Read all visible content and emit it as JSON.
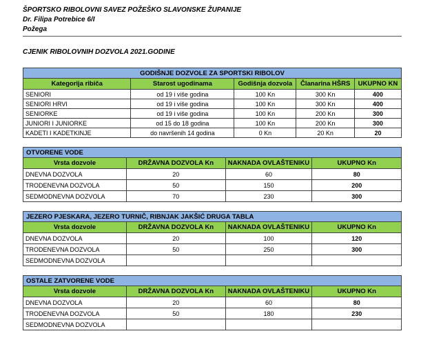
{
  "header": {
    "org_name": "ŠPORTSKO RIBOLOVNI SAVEZ POŽEŠKO SLAVONSKE ŽUPANIJE",
    "address": "Dr. Filipa Potrebice 6/I",
    "city": "Požega",
    "doc_title": "CJENIK RIBOLOVNIH DOZVOLA 2021.GODINE"
  },
  "colors": {
    "title_bar_blue": "#8DB4E2",
    "header_row_green": "#92D050",
    "table_border": "#404040"
  },
  "tables": [
    {
      "title": "GODIŠNJE DOZVOLE ZA SPORTSKI RIBOLOV",
      "columns": [
        "Kategorija ribiča",
        "Starost ugodinama",
        "Godišnja dozvola",
        "Članarina HŠRS",
        "UKUPNO KN"
      ],
      "rows": [
        [
          "SENIORI",
          "od 19 i više godina",
          "100 Kn",
          "300 Kn",
          "400"
        ],
        [
          "SENIORI HRVI",
          "od 19 i više godina",
          "100 Kn",
          "300 Kn",
          "400"
        ],
        [
          "SENIORKE",
          "od 19 i više godina",
          "100 Kn",
          "200 Kn",
          "300"
        ],
        [
          "JUNIORI I JUNIORKE",
          "od 15 do 18 godina",
          "100 Kn",
          "200 Kn",
          "300"
        ],
        [
          "KADETI I KADETKINJE",
          "do navršenih 14 godina",
          "0 Kn",
          "20 Kn",
          "20"
        ]
      ]
    },
    {
      "title": "OTVORENE VODE",
      "columns": [
        "Vrsta dozvole",
        "DRŽAVNA DOZVOLA Kn",
        "NAKNADA OVLAŠTENIKU Kn",
        "UKUPNO Kn"
      ],
      "rows": [
        [
          "DNEVNA DOZVOLA",
          "20",
          "60",
          "80"
        ],
        [
          "TRODENEVNA DOZVOLA",
          "50",
          "150",
          "200"
        ],
        [
          "SEDMODNEVNA DOZVOLA",
          "70",
          "230",
          "300"
        ]
      ]
    },
    {
      "title": "JEZERO PJESKARA, JEZERO TURNIČ, RIBNJAK JAKŠIĆ DRUGA TABLA",
      "columns": [
        "Vrsta dozvole",
        "DRŽAVNA DOZVOLA Kn",
        "NAKNADA OVLAŠTENIKU Kn",
        "UKUPNO Kn"
      ],
      "rows": [
        [
          "DNEVNA DOZVOLA",
          "20",
          "100",
          "120"
        ],
        [
          "TRODENEVNA DOZVOLA",
          "50",
          "250",
          "300"
        ],
        [
          "SEDMODNEVNA DOZVOLA",
          "",
          "",
          ""
        ]
      ]
    },
    {
      "title": "OSTALE ZATVORENE VODE",
      "columns": [
        "Vrsta dozvole",
        "DRŽAVNA DOZVOLA Kn",
        "NAKNADA OVLAŠTENIKU Kn",
        "UKUPNO Kn"
      ],
      "rows": [
        [
          "DNEVNA DOZVOLA",
          "20",
          "60",
          "80"
        ],
        [
          "TRODENEVNA DOZVOLA",
          "50",
          "180",
          "230"
        ],
        [
          "SEDMODNEVNA DOZVOLA",
          "",
          "",
          ""
        ]
      ]
    }
  ]
}
